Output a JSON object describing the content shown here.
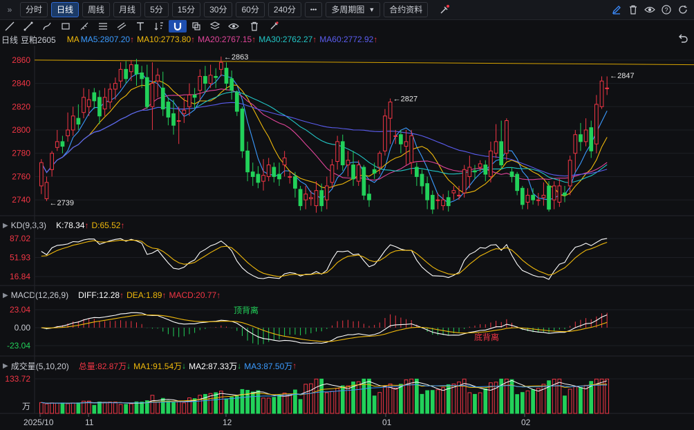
{
  "toolbar": {
    "menu_glyph": "»",
    "periods": [
      "分时",
      "日线",
      "周线",
      "月线",
      "5分",
      "15分",
      "30分",
      "60分",
      "240分"
    ],
    "active_period": "日线",
    "more_glyph": "•••",
    "multi_period": "多周期图",
    "contract_info": "合约资料",
    "right_icons": [
      "edit-icon",
      "trash-icon",
      "eye-icon",
      "help-icon",
      "refresh-icon"
    ]
  },
  "drawing_tools": [
    "line-tool-icon",
    "segment-tool-icon",
    "pen-tool-icon",
    "rect-tool-icon",
    "measure-tool-icon",
    "fib-tool-icon",
    "channel-tool-icon",
    "text-tool-icon",
    "sort-tool-icon",
    "magnet-tool-icon",
    "copy-tool-icon",
    "layers-tool-icon",
    "eye-tool-icon",
    "trash-tool-icon",
    "brush-tool-icon"
  ],
  "chart_header": {
    "period": "日线",
    "symbol": "豆粕2605",
    "ma_title": "MA",
    "mas": [
      {
        "label": "MA5:2807.20",
        "color": "#3b9bff",
        "dir": "↑"
      },
      {
        "label": "MA10:2773.80",
        "color": "#f0b90b",
        "dir": "↑"
      },
      {
        "label": "MA20:2767.15",
        "color": "#e0459a",
        "dir": "↑"
      },
      {
        "label": "MA30:2762.27",
        "color": "#22c6c6",
        "dir": "↑"
      },
      {
        "label": "MA60:2772.92",
        "color": "#5b5df0",
        "dir": "↑"
      }
    ],
    "back_icon": "undo-icon"
  },
  "price_panel": {
    "y_ticks": [
      "2860",
      "2840",
      "2820",
      "2800",
      "2780",
      "2760",
      "2740"
    ],
    "annotations": {
      "high1": "2863",
      "high2": "2827",
      "high3": "2847",
      "low": "2739"
    }
  },
  "kd_panel": {
    "title": "KD(9,3,3)",
    "k": "K:78.34",
    "d": "D:65.52",
    "y_ticks": [
      "87.02",
      "51.93",
      "16.84"
    ]
  },
  "macd_panel": {
    "title": "MACD(12,26,9)",
    "diff": "DIFF:12.28",
    "dea": "DEA:1.89",
    "macd": "MACD:20.77",
    "y_ticks": [
      "23.04",
      "0.00",
      "-23.04"
    ],
    "top_divergence": "顶背离",
    "bottom_divergence": "底背离"
  },
  "volume_panel": {
    "title": "成交量(5,10,20)",
    "total": "总量:82.87万",
    "ma1": "MA1:91.54万",
    "ma2": "MA2:87.33万",
    "ma3": "MA3:87.50万",
    "y_top": "133.72",
    "unit": "万"
  },
  "x_axis": [
    "2025/10",
    "11",
    "12",
    "01",
    "02"
  ],
  "chart_data": {
    "type": "candlestick",
    "symbol": "豆粕2605",
    "period": "日线",
    "ylim": [
      2730,
      2870
    ],
    "annotated_high": 2863,
    "annotated_low": 2739,
    "last_high": 2847,
    "candles": [
      [
        2752,
        2772,
        2745,
        2775
      ],
      [
        2741,
        2755,
        2739,
        2760
      ],
      [
        2766,
        2780,
        2760,
        2782
      ],
      [
        2785,
        2790,
        2782,
        2800
      ],
      [
        2790,
        2786,
        2780,
        2795
      ],
      [
        2795,
        2800,
        2790,
        2815
      ],
      [
        2800,
        2812,
        2795,
        2820
      ],
      [
        2810,
        2805,
        2800,
        2822
      ],
      [
        2815,
        2828,
        2810,
        2836
      ],
      [
        2820,
        2826,
        2812,
        2835
      ],
      [
        2832,
        2825,
        2818,
        2836
      ],
      [
        2828,
        2812,
        2805,
        2834
      ],
      [
        2818,
        2828,
        2812,
        2836
      ],
      [
        2824,
        2835,
        2818,
        2840
      ],
      [
        2835,
        2840,
        2826,
        2845
      ],
      [
        2842,
        2852,
        2836,
        2858
      ],
      [
        2852,
        2844,
        2840,
        2859
      ],
      [
        2850,
        2856,
        2842,
        2860
      ],
      [
        2856,
        2848,
        2838,
        2861
      ],
      [
        2849,
        2844,
        2836,
        2855
      ],
      [
        2845,
        2820,
        2818,
        2856
      ],
      [
        2820,
        2840,
        2800,
        2858
      ],
      [
        2842,
        2847,
        2828,
        2853
      ],
      [
        2836,
        2818,
        2812,
        2850
      ],
      [
        2824,
        2811,
        2804,
        2828
      ],
      [
        2814,
        2804,
        2796,
        2826
      ],
      [
        2808,
        2808,
        2788,
        2820
      ],
      [
        2814,
        2817,
        2806,
        2828
      ],
      [
        2820,
        2830,
        2812,
        2840
      ],
      [
        2830,
        2828,
        2818,
        2836
      ],
      [
        2834,
        2846,
        2826,
        2852
      ],
      [
        2846,
        2840,
        2832,
        2855
      ],
      [
        2840,
        2847,
        2836,
        2856
      ],
      [
        2846,
        2845,
        2836,
        2853
      ],
      [
        2852,
        2858,
        2846,
        2863
      ],
      [
        2853,
        2840,
        2834,
        2858
      ],
      [
        2844,
        2834,
        2826,
        2851
      ],
      [
        2832,
        2816,
        2812,
        2834
      ],
      [
        2818,
        2782,
        2776,
        2820
      ],
      [
        2782,
        2764,
        2756,
        2790
      ],
      [
        2764,
        2760,
        2752,
        2772
      ],
      [
        2762,
        2755,
        2750,
        2769
      ],
      [
        2756,
        2761,
        2748,
        2775
      ],
      [
        2760,
        2770,
        2756,
        2776
      ],
      [
        2768,
        2760,
        2755,
        2772
      ],
      [
        2762,
        2758,
        2752,
        2772
      ],
      [
        2770,
        2776,
        2760,
        2782
      ],
      [
        2760,
        2760,
        2754,
        2764
      ],
      [
        2760,
        2750,
        2742,
        2764
      ],
      [
        2749,
        2735,
        2731,
        2752
      ],
      [
        2740,
        2745,
        2732,
        2752
      ],
      [
        2741,
        2742,
        2735,
        2748
      ],
      [
        2735,
        2748,
        2729,
        2756
      ],
      [
        2748,
        2735,
        2730,
        2754
      ],
      [
        2740,
        2752,
        2732,
        2760
      ],
      [
        2755,
        2770,
        2750,
        2775
      ],
      [
        2773,
        2790,
        2766,
        2795
      ],
      [
        2790,
        2770,
        2765,
        2796
      ],
      [
        2770,
        2774,
        2760,
        2782
      ],
      [
        2770,
        2758,
        2752,
        2782
      ],
      [
        2756,
        2770,
        2752,
        2774
      ],
      [
        2768,
        2744,
        2740,
        2770
      ],
      [
        2745,
        2740,
        2734,
        2753
      ],
      [
        2766,
        2763,
        2758,
        2772
      ],
      [
        2768,
        2780,
        2762,
        2782
      ],
      [
        2782,
        2812,
        2778,
        2818
      ],
      [
        2810,
        2824,
        2788,
        2827
      ],
      [
        2795,
        2795,
        2788,
        2800
      ],
      [
        2796,
        2788,
        2780,
        2800
      ],
      [
        2786,
        2790,
        2770,
        2800
      ],
      [
        2772,
        2795,
        2762,
        2800
      ],
      [
        2768,
        2760,
        2752,
        2772
      ],
      [
        2762,
        2752,
        2745,
        2766
      ],
      [
        2754,
        2740,
        2732,
        2760
      ],
      [
        2744,
        2732,
        2728,
        2748
      ],
      [
        2740,
        2740,
        2732,
        2746
      ],
      [
        2735,
        2740,
        2731,
        2745
      ],
      [
        2742,
        2735,
        2730,
        2748
      ],
      [
        2746,
        2748,
        2740,
        2752
      ],
      [
        2744,
        2744,
        2740,
        2752
      ],
      [
        2746,
        2766,
        2742,
        2770
      ],
      [
        2760,
        2768,
        2750,
        2778
      ],
      [
        2765,
        2764,
        2758,
        2770
      ],
      [
        2768,
        2771,
        2764,
        2774
      ],
      [
        2770,
        2762,
        2756,
        2774
      ],
      [
        2760,
        2782,
        2755,
        2790
      ],
      [
        2780,
        2790,
        2776,
        2805
      ],
      [
        2790,
        2770,
        2766,
        2808
      ],
      [
        2780,
        2808,
        2774,
        2810
      ],
      [
        2764,
        2760,
        2755,
        2768
      ],
      [
        2762,
        2748,
        2744,
        2764
      ],
      [
        2750,
        2736,
        2732,
        2752
      ],
      [
        2738,
        2744,
        2732,
        2750
      ],
      [
        2744,
        2740,
        2736,
        2750
      ],
      [
        2740,
        2740,
        2735,
        2746
      ],
      [
        2742,
        2744,
        2735,
        2755
      ],
      [
        2752,
        2732,
        2730,
        2756
      ],
      [
        2740,
        2752,
        2732,
        2756
      ],
      [
        2738,
        2752,
        2734,
        2758
      ],
      [
        2746,
        2744,
        2738,
        2752
      ],
      [
        2752,
        2774,
        2744,
        2778
      ],
      [
        2780,
        2796,
        2764,
        2800
      ],
      [
        2796,
        2790,
        2782,
        2806
      ],
      [
        2790,
        2800,
        2786,
        2810
      ],
      [
        2802,
        2782,
        2776,
        2808
      ],
      [
        2788,
        2822,
        2780,
        2830
      ],
      [
        2820,
        2842,
        2818,
        2846
      ],
      [
        2836,
        2836,
        2830,
        2846
      ]
    ],
    "indicators": {
      "MA5": 2807.2,
      "MA10": 2773.8,
      "MA20": 2767.15,
      "MA30": 2762.27,
      "MA60": 2772.92,
      "K": 78.34,
      "D": 65.52,
      "DIFF": 12.28,
      "DEA": 1.89,
      "MACD": 20.77,
      "volume_total_wan": 82.87,
      "vol_MA1_wan": 91.54,
      "vol_MA2_wan": 87.33,
      "vol_MA3_wan": 87.5
    }
  }
}
